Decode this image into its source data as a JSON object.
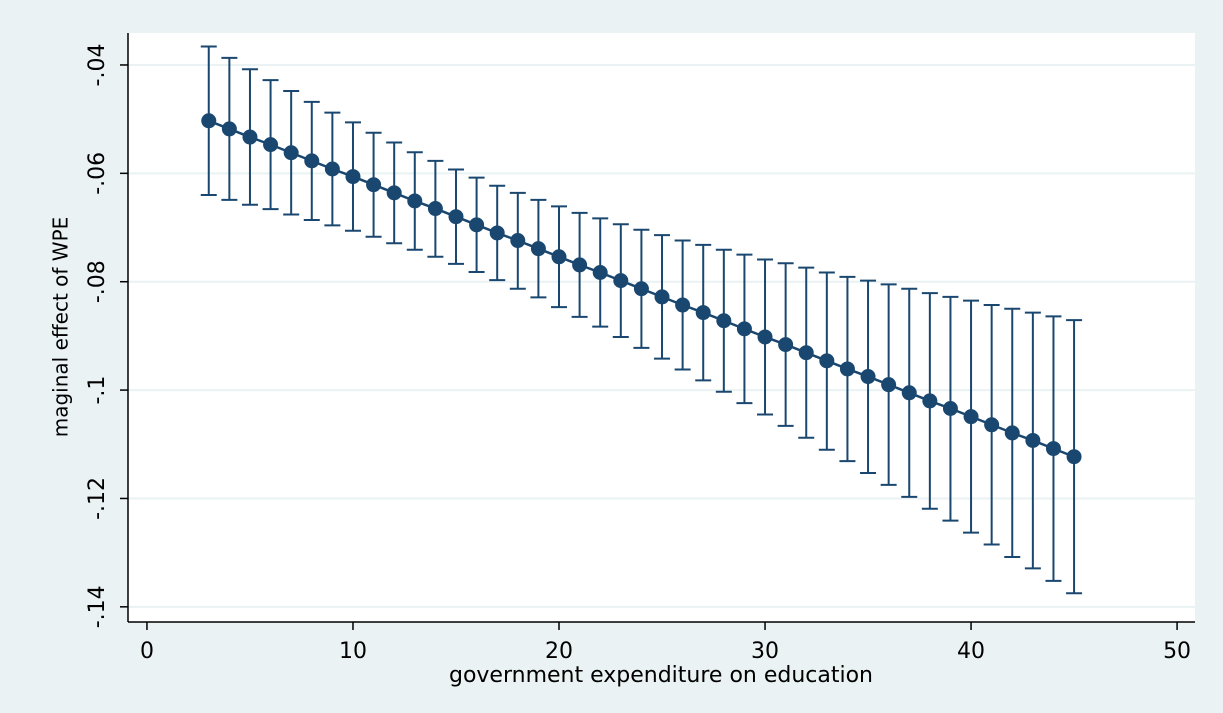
{
  "chart_data": {
    "type": "line",
    "x_label": "government expenditure on education",
    "y_label": "maginal effect of WPE",
    "x": [
      3,
      4,
      5,
      6,
      7,
      8,
      9,
      10,
      11,
      12,
      13,
      14,
      15,
      16,
      17,
      18,
      19,
      20,
      21,
      22,
      23,
      24,
      25,
      26,
      27,
      28,
      29,
      30,
      31,
      32,
      33,
      34,
      35,
      36,
      37,
      38,
      39,
      40,
      41,
      42,
      43,
      44,
      45
    ],
    "series": [
      {
        "color": "#1a476f",
        "values": [
          -0.0503,
          -0.0518,
          -0.0533,
          -0.0547,
          -0.0562,
          -0.0577,
          -0.0592,
          -0.0606,
          -0.0621,
          -0.0636,
          -0.0651,
          -0.0665,
          -0.068,
          -0.0695,
          -0.071,
          -0.0724,
          -0.0739,
          -0.0754,
          -0.0769,
          -0.0783,
          -0.0798,
          -0.0813,
          -0.0828,
          -0.0843,
          -0.0857,
          -0.0872,
          -0.0887,
          -0.0902,
          -0.0916,
          -0.0931,
          -0.0946,
          -0.0961,
          -0.0975,
          -0.099,
          -0.1005,
          -0.102,
          -0.1034,
          -0.1049,
          -0.1064,
          -0.1079,
          -0.1093,
          -0.1108,
          -0.1123
        ],
        "upper": [
          -0.0366,
          -0.0387,
          -0.0408,
          -0.0428,
          -0.0448,
          -0.0468,
          -0.0488,
          -0.0506,
          -0.0525,
          -0.0543,
          -0.0561,
          -0.0577,
          -0.0593,
          -0.0608,
          -0.0623,
          -0.0636,
          -0.0649,
          -0.0661,
          -0.0673,
          -0.0683,
          -0.0694,
          -0.0704,
          -0.0714,
          -0.0724,
          -0.0732,
          -0.0741,
          -0.075,
          -0.0759,
          -0.0766,
          -0.0774,
          -0.0783,
          -0.0791,
          -0.0798,
          -0.0805,
          -0.0813,
          -0.0821,
          -0.0828,
          -0.0835,
          -0.0843,
          -0.085,
          -0.0857,
          -0.0864,
          -0.0871
        ],
        "lower": [
          -0.064,
          -0.0649,
          -0.0658,
          -0.0666,
          -0.0676,
          -0.0686,
          -0.0696,
          -0.0706,
          -0.0717,
          -0.0729,
          -0.0741,
          -0.0754,
          -0.0767,
          -0.0782,
          -0.0797,
          -0.0813,
          -0.0829,
          -0.0847,
          -0.0865,
          -0.0883,
          -0.0902,
          -0.0922,
          -0.0942,
          -0.0962,
          -0.0982,
          -0.1003,
          -0.1024,
          -0.1045,
          -0.1066,
          -0.1088,
          -0.111,
          -0.1131,
          -0.1153,
          -0.1175,
          -0.1197,
          -0.1219,
          -0.1241,
          -0.1263,
          -0.1285,
          -0.1308,
          -0.1329,
          -0.1352,
          -0.1375
        ]
      }
    ],
    "xlim": [
      -0.92,
      50.87
    ],
    "xticks": [
      0,
      10,
      20,
      30,
      40,
      50
    ],
    "ylim": [
      -0.1428,
      -0.0341
    ],
    "yticks": [
      {
        "value": -0.04,
        "label": "-.04"
      },
      {
        "value": -0.06,
        "label": "-.06"
      },
      {
        "value": -0.08,
        "label": "-.08"
      },
      {
        "value": -0.1,
        "label": "-.1"
      },
      {
        "value": -0.12,
        "label": "-.12"
      },
      {
        "value": -0.14,
        "label": "-.14"
      }
    ],
    "grid": true
  }
}
